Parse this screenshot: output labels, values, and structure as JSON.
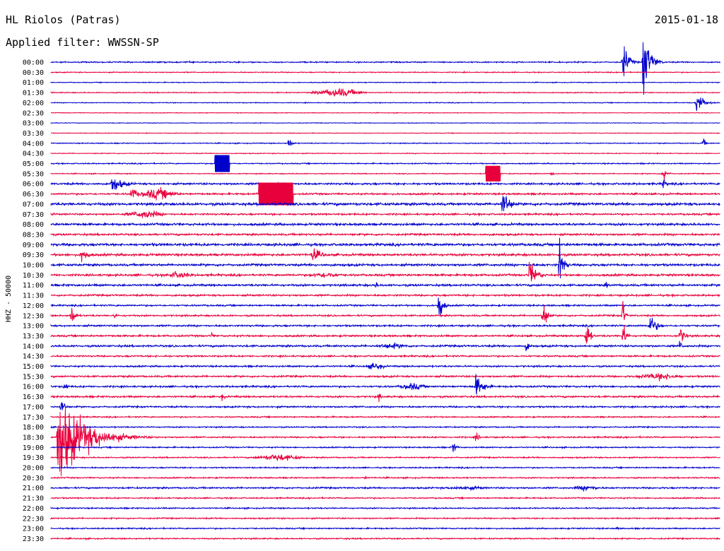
{
  "header": {
    "station": "HL Riolos (Patras)",
    "date": "2015-01-18",
    "filter": "Applied filter: WWSSN-SP"
  },
  "chart_data": {
    "type": "line",
    "title": "HL Riolos (Patras)",
    "ylabel": "HHZ - 50000",
    "row_labels": [
      "00:00",
      "00:30",
      "01:00",
      "01:30",
      "02:00",
      "02:30",
      "03:00",
      "03:30",
      "04:00",
      "04:30",
      "05:00",
      "05:30",
      "06:00",
      "06:30",
      "07:00",
      "07:30",
      "08:00",
      "08:30",
      "09:00",
      "09:30",
      "10:00",
      "10:30",
      "11:00",
      "11:30",
      "12:00",
      "12:30",
      "13:00",
      "13:30",
      "14:00",
      "14:30",
      "15:00",
      "15:30",
      "16:00",
      "16:30",
      "17:00",
      "17:30",
      "18:00",
      "18:30",
      "19:00",
      "19:30",
      "20:00",
      "20:30",
      "21:00",
      "21:30",
      "22:00",
      "22:30",
      "23:00",
      "23:30"
    ],
    "row_colors": [
      "#0000cc",
      "#e8003c"
    ],
    "noise_levels": [
      0.8,
      0.6,
      0.5,
      0.6,
      0.5,
      0.4,
      0.4,
      0.4,
      0.6,
      0.5,
      0.7,
      0.6,
      1.2,
      1.1,
      1.6,
      1.1,
      1.4,
      1.2,
      1.6,
      1.4,
      1.4,
      1.3,
      1.3,
      1.1,
      1.0,
      1.0,
      1.1,
      1.1,
      1.2,
      1.0,
      1.0,
      1.1,
      1.1,
      1.1,
      1.0,
      0.8,
      0.8,
      0.9,
      0.8,
      0.8,
      0.8,
      0.8,
      1.0,
      0.8,
      0.8,
      0.8,
      0.8,
      0.8
    ],
    "events": [
      {
        "row": 0,
        "t": 0.855,
        "amp": 28,
        "dur": 0.015,
        "type": "quake"
      },
      {
        "row": 0,
        "t": 0.885,
        "amp": 46,
        "dur": 0.02,
        "type": "quake"
      },
      {
        "row": 0,
        "t": 0.205,
        "amp": 3,
        "dur": 0.005,
        "type": "quake"
      },
      {
        "row": 3,
        "t": 0.43,
        "amp": 6,
        "dur": 0.05,
        "type": "burst"
      },
      {
        "row": 4,
        "t": 0.965,
        "amp": 16,
        "dur": 0.02,
        "type": "quake"
      },
      {
        "row": 8,
        "t": 0.355,
        "amp": 9,
        "dur": 0.01,
        "type": "quake"
      },
      {
        "row": 8,
        "t": 0.975,
        "amp": 6,
        "dur": 0.01,
        "type": "quake"
      },
      {
        "row": 10,
        "t": 0.245,
        "amp": 12,
        "dur": 0.022,
        "type": "box"
      },
      {
        "row": 11,
        "t": 0.65,
        "amp": 11,
        "dur": 0.022,
        "type": "box"
      },
      {
        "row": 11,
        "t": 0.915,
        "amp": 14,
        "dur": 0.01,
        "type": "quake"
      },
      {
        "row": 11,
        "t": 0.748,
        "amp": 4,
        "dur": 0.008,
        "type": "quake"
      },
      {
        "row": 12,
        "t": 0.09,
        "amp": 13,
        "dur": 0.035,
        "type": "quake"
      },
      {
        "row": 12,
        "t": 0.915,
        "amp": 8,
        "dur": 0.01,
        "type": "quake"
      },
      {
        "row": 13,
        "t": 0.12,
        "amp": 10,
        "dur": 0.02,
        "type": "quake"
      },
      {
        "row": 13,
        "t": 0.16,
        "amp": 8,
        "dur": 0.04,
        "type": "burst"
      },
      {
        "row": 13,
        "t": 0.31,
        "amp": 16,
        "dur": 0.052,
        "type": "box"
      },
      {
        "row": 14,
        "t": 0.675,
        "amp": 22,
        "dur": 0.02,
        "type": "quake"
      },
      {
        "row": 15,
        "t": 0.14,
        "amp": 6,
        "dur": 0.04,
        "type": "burst"
      },
      {
        "row": 19,
        "t": 0.045,
        "amp": 12,
        "dur": 0.02,
        "type": "quake"
      },
      {
        "row": 19,
        "t": 0.39,
        "amp": 10,
        "dur": 0.03,
        "type": "quake"
      },
      {
        "row": 20,
        "t": 0.76,
        "amp": 34,
        "dur": 0.012,
        "type": "quake"
      },
      {
        "row": 21,
        "t": 0.715,
        "amp": 22,
        "dur": 0.02,
        "type": "quake"
      },
      {
        "row": 21,
        "t": 0.19,
        "amp": 5,
        "dur": 0.03,
        "type": "burst"
      },
      {
        "row": 21,
        "t": 0.41,
        "amp": 4,
        "dur": 0.04,
        "type": "burst"
      },
      {
        "row": 22,
        "t": 0.485,
        "amp": 5,
        "dur": 0.01,
        "type": "quake"
      },
      {
        "row": 22,
        "t": 0.83,
        "amp": 6,
        "dur": 0.005,
        "type": "quake"
      },
      {
        "row": 24,
        "t": 0.58,
        "amp": 28,
        "dur": 0.01,
        "type": "quake"
      },
      {
        "row": 25,
        "t": 0.03,
        "amp": 16,
        "dur": 0.012,
        "type": "quake"
      },
      {
        "row": 25,
        "t": 0.735,
        "amp": 24,
        "dur": 0.012,
        "type": "quake"
      },
      {
        "row": 25,
        "t": 0.855,
        "amp": 30,
        "dur": 0.005,
        "type": "quake"
      },
      {
        "row": 25,
        "t": 0.095,
        "amp": 6,
        "dur": 0.005,
        "type": "quake"
      },
      {
        "row": 26,
        "t": 0.895,
        "amp": 16,
        "dur": 0.02,
        "type": "quake"
      },
      {
        "row": 27,
        "t": 0.8,
        "amp": 26,
        "dur": 0.01,
        "type": "quake"
      },
      {
        "row": 27,
        "t": 0.855,
        "amp": 20,
        "dur": 0.01,
        "type": "quake"
      },
      {
        "row": 27,
        "t": 0.94,
        "amp": 14,
        "dur": 0.015,
        "type": "quake"
      },
      {
        "row": 27,
        "t": 0.24,
        "amp": 5,
        "dur": 0.005,
        "type": "quake"
      },
      {
        "row": 28,
        "t": 0.71,
        "amp": 10,
        "dur": 0.01,
        "type": "quake"
      },
      {
        "row": 28,
        "t": 0.51,
        "amp": 4,
        "dur": 0.04,
        "type": "burst"
      },
      {
        "row": 28,
        "t": 0.94,
        "amp": 8,
        "dur": 0.01,
        "type": "quake"
      },
      {
        "row": 30,
        "t": 0.485,
        "amp": 5,
        "dur": 0.02,
        "type": "burst"
      },
      {
        "row": 31,
        "t": 0.91,
        "amp": 5,
        "dur": 0.05,
        "type": "burst"
      },
      {
        "row": 32,
        "t": 0.635,
        "amp": 16,
        "dur": 0.025,
        "type": "quake"
      },
      {
        "row": 32,
        "t": 0.54,
        "amp": 5,
        "dur": 0.03,
        "type": "burst"
      },
      {
        "row": 32,
        "t": 0.02,
        "amp": 8,
        "dur": 0.01,
        "type": "quake"
      },
      {
        "row": 33,
        "t": 0.49,
        "amp": 9,
        "dur": 0.005,
        "type": "quake"
      },
      {
        "row": 33,
        "t": 0.255,
        "amp": 6,
        "dur": 0.01,
        "type": "quake"
      },
      {
        "row": 34,
        "t": 0.015,
        "amp": 14,
        "dur": 0.01,
        "type": "quake"
      },
      {
        "row": 37,
        "t": 0.01,
        "amp": 62,
        "dur": 0.08,
        "type": "quake"
      },
      {
        "row": 37,
        "t": 0.635,
        "amp": 8,
        "dur": 0.01,
        "type": "quake"
      },
      {
        "row": 38,
        "t": 0.6,
        "amp": 10,
        "dur": 0.01,
        "type": "quake"
      },
      {
        "row": 39,
        "t": 0.34,
        "amp": 5,
        "dur": 0.05,
        "type": "burst"
      },
      {
        "row": 41,
        "t": 0.47,
        "amp": 5,
        "dur": 0.005,
        "type": "quake"
      },
      {
        "row": 42,
        "t": 0.62,
        "amp": 3,
        "dur": 0.05,
        "type": "burst"
      },
      {
        "row": 42,
        "t": 0.8,
        "amp": 4,
        "dur": 0.03,
        "type": "burst"
      },
      {
        "row": 46,
        "t": 0.845,
        "amp": 3,
        "dur": 0.01,
        "type": "quake"
      },
      {
        "row": 47,
        "t": 0.44,
        "amp": 3,
        "dur": 0.005,
        "type": "quake"
      }
    ]
  }
}
